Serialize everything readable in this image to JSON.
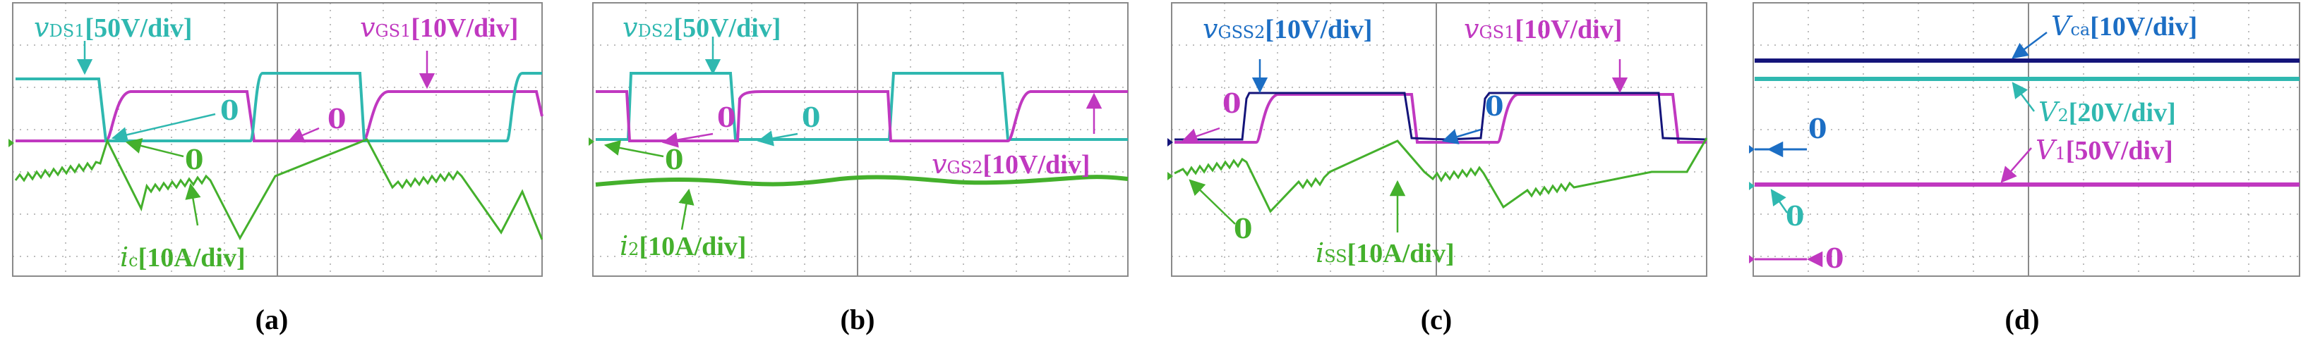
{
  "colors": {
    "cyan": "#2fb8b0",
    "magenta": "#c038c0",
    "green": "#44b02c",
    "navy": "#14147a",
    "blue": "#1c6ec4",
    "grid": "#a8a8a8",
    "frame": "#8a8a8a",
    "arrow_blue": "#1c6ec4"
  },
  "chart_data": [
    {
      "type": "line",
      "label": "(a)",
      "series": [
        {
          "name": "vDS1[50V/div]",
          "role": "drain-source voltage",
          "color": "cyan"
        },
        {
          "name": "vGS1[10V/div]",
          "role": "gate-source voltage",
          "color": "magenta"
        },
        {
          "name": "iC[10A/div]",
          "role": "current",
          "color": "green"
        }
      ],
      "annotations": [
        {
          "text": "vDS1[50V/div]",
          "color": "cyan"
        },
        {
          "text": "vGS1[10V/div]",
          "color": "magenta"
        },
        {
          "text": "0",
          "color": "cyan"
        },
        {
          "text": "0",
          "color": "magenta"
        },
        {
          "text": "0",
          "color": "green"
        },
        {
          "text": "iC[10A/div]",
          "color": "green"
        }
      ]
    },
    {
      "type": "line",
      "label": "(b)",
      "series": [
        {
          "name": "vDS2[50V/div]",
          "color": "cyan"
        },
        {
          "name": "vGS2[10V/div]",
          "color": "magenta"
        },
        {
          "name": "i2[10A/div]",
          "color": "green"
        }
      ],
      "annotations": [
        {
          "text": "vDS2[50V/div]",
          "color": "cyan"
        },
        {
          "text": "0",
          "color": "magenta"
        },
        {
          "text": "0",
          "color": "cyan"
        },
        {
          "text": "0",
          "color": "green"
        },
        {
          "text": "vGS2[10V/div]",
          "color": "magenta"
        },
        {
          "text": "i2[10A/div]",
          "color": "green"
        }
      ]
    },
    {
      "type": "line",
      "label": "(c)",
      "series": [
        {
          "name": "vGSS2[10V/div]",
          "color": "navy"
        },
        {
          "name": "vGS1[10V/div]",
          "color": "magenta"
        },
        {
          "name": "iSS[10A/div]",
          "color": "green"
        }
      ],
      "annotations": [
        {
          "text": "vGSS2[10V/div]",
          "color": "blue"
        },
        {
          "text": "vGS1[10V/div]",
          "color": "magenta"
        },
        {
          "text": "0",
          "color": "magenta"
        },
        {
          "text": "0",
          "color": "blue"
        },
        {
          "text": "0",
          "color": "green"
        },
        {
          "text": "iSS[10A/div]",
          "color": "green"
        }
      ]
    },
    {
      "type": "line",
      "label": "(d)",
      "series": [
        {
          "name": "Vca[10V/div]",
          "color": "navy"
        },
        {
          "name": "V2[20V/div]",
          "color": "cyan"
        },
        {
          "name": "V1[50V/div]",
          "color": "magenta"
        }
      ],
      "annotations": [
        {
          "text": "Vca[10V/div]",
          "color": "blue"
        },
        {
          "text": "0",
          "color": "blue"
        },
        {
          "text": "V2[20V/div]",
          "color": "cyan"
        },
        {
          "text": "V1[50V/div]",
          "color": "magenta"
        },
        {
          "text": "0",
          "color": "cyan"
        },
        {
          "text": "0",
          "color": "magenta"
        }
      ]
    }
  ],
  "panels": {
    "a": {
      "caption": "(a)",
      "lbl_vds_main": "v",
      "lbl_vds_sub": "DS1",
      "lbl_vds_scale": "[50V/div]",
      "lbl_vgs_main": "v",
      "lbl_vgs_sub": "GS1",
      "lbl_vgs_scale": "[10V/div]",
      "lbl_zero_cyan": "0",
      "lbl_zero_mag": "0",
      "lbl_zero_green": "0",
      "lbl_i_main": "i",
      "lbl_i_sub": "c",
      "lbl_i_scale": "[10A/div]"
    },
    "b": {
      "caption": "(b)",
      "lbl_vds_main": "v",
      "lbl_vds_sub": "DS2",
      "lbl_vds_scale": "[50V/div]",
      "lbl_zero_mag": "0",
      "lbl_zero_cyan": "0",
      "lbl_zero_green": "0",
      "lbl_vgs_main": "v",
      "lbl_vgs_sub": "GS2",
      "lbl_vgs_scale": "[10V/div]",
      "lbl_i_main": "i",
      "lbl_i_sub": "2",
      "lbl_i_scale": "[10A/div]"
    },
    "c": {
      "caption": "(c)",
      "lbl_vgss_main": "v",
      "lbl_vgss_sub": "GSS2",
      "lbl_vgss_scale": "[10V/div]",
      "lbl_vgs_main": "v",
      "lbl_vgs_sub": "GS1",
      "lbl_vgs_scale": "[10V/div]",
      "lbl_zero_mag": "0",
      "lbl_zero_blue": "0",
      "lbl_zero_green": "0",
      "lbl_i_main": "i",
      "lbl_i_sub": "SS",
      "lbl_i_scale": "[10A/div]"
    },
    "d": {
      "caption": "(d)",
      "lbl_vca_main": "V",
      "lbl_vca_sub": "ca",
      "lbl_vca_scale": "[10V/div]",
      "lbl_zero_blue": "0",
      "lbl_v2_main": "V",
      "lbl_v2_sub": "2",
      "lbl_v2_scale": "[20V/div]",
      "lbl_v1_main": "V",
      "lbl_v1_sub": "1",
      "lbl_v1_scale": "[50V/div]",
      "lbl_zero_cyan": "0",
      "lbl_zero_mag": "0"
    }
  }
}
